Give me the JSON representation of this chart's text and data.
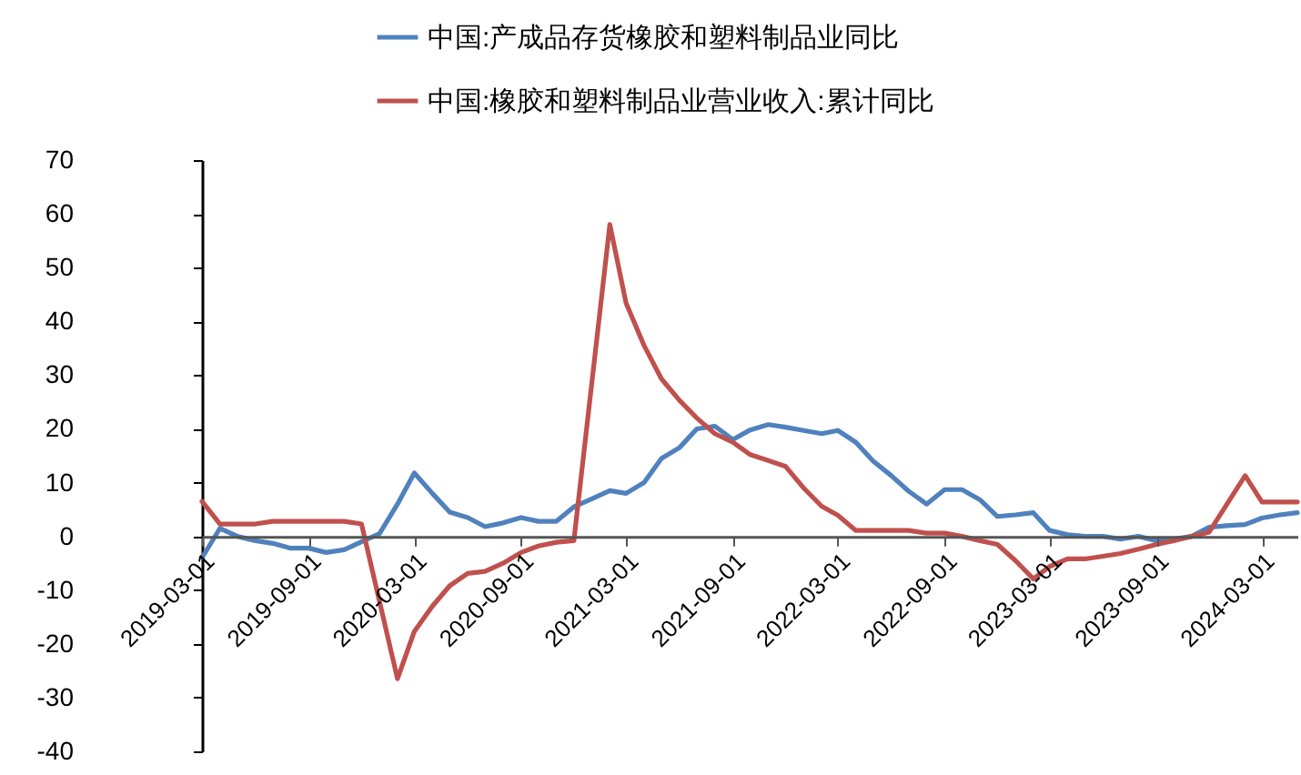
{
  "chart_data": {
    "type": "line",
    "x": [
      "2019-03",
      "2019-04",
      "2019-05",
      "2019-06",
      "2019-07",
      "2019-08",
      "2019-09",
      "2019-10",
      "2019-11",
      "2019-12",
      "2020-01",
      "2020-02",
      "2020-03",
      "2020-04",
      "2020-05",
      "2020-06",
      "2020-07",
      "2020-08",
      "2020-09",
      "2020-10",
      "2020-11",
      "2020-12",
      "2021-01",
      "2021-02",
      "2021-03",
      "2021-04",
      "2021-05",
      "2021-06",
      "2021-07",
      "2021-08",
      "2021-09",
      "2021-10",
      "2021-11",
      "2021-12",
      "2022-01",
      "2022-02",
      "2022-03",
      "2022-04",
      "2022-05",
      "2022-06",
      "2022-07",
      "2022-08",
      "2022-09",
      "2022-10",
      "2022-11",
      "2022-12",
      "2023-01",
      "2023-02",
      "2023-03",
      "2023-04",
      "2023-05",
      "2023-06",
      "2023-07",
      "2023-08",
      "2023-09",
      "2023-10",
      "2023-11",
      "2023-12",
      "2024-01",
      "2024-02",
      "2024-03",
      "2024-04",
      "2024-05"
    ],
    "series": [
      {
        "name": "中国:产成品存货橡胶和塑料制品业同比",
        "color": "#4f81bd",
        "values": [
          -4,
          1.5,
          0,
          -0.8,
          -1.3,
          -2.2,
          -2.2,
          -3,
          -2.5,
          -1,
          0.5,
          6,
          11.8,
          8,
          4.5,
          3.5,
          1.8,
          2.5,
          3.5,
          2.8,
          2.8,
          5.5,
          7,
          8.5,
          8,
          10,
          14.5,
          16.5,
          20,
          20.5,
          18,
          19.8,
          20.8,
          20.3,
          19.7,
          19.1,
          19.7,
          17.5,
          14,
          11.3,
          8.4,
          6,
          8.7,
          8.7,
          6.8,
          3.7,
          4,
          4.4,
          1.1,
          0.3,
          0,
          0,
          -0.5,
          0,
          -0.8,
          -0.5,
          0,
          1.7,
          2,
          2.2,
          3.4,
          4,
          4.4
        ]
      },
      {
        "name": "中国:橡胶和塑料制品业营业收入:累计同比",
        "color": "#c0504d",
        "x": [
          "2019-03",
          "2019-04",
          "2019-05",
          "2019-06",
          "2019-07",
          "2019-08",
          "2019-09",
          "2019-10",
          "2019-11",
          "2019-12",
          "2020-02",
          "2020-03",
          "2020-04",
          "2020-05",
          "2020-06",
          "2020-07",
          "2020-08",
          "2020-09",
          "2020-10",
          "2020-11",
          "2020-12",
          "2021-02",
          "2021-03",
          "2021-04",
          "2021-05",
          "2021-06",
          "2021-07",
          "2021-08",
          "2021-09",
          "2021-10",
          "2021-11",
          "2021-12",
          "2022-01",
          "2022-02",
          "2022-03",
          "2022-04",
          "2022-05",
          "2022-06",
          "2022-07",
          "2022-08",
          "2022-09",
          "2022-10",
          "2022-11",
          "2022-12",
          "2023-01",
          "2023-02",
          "2023-03",
          "2023-04",
          "2023-05",
          "2023-06",
          "2023-07",
          "2023-08",
          "2023-09",
          "2023-10",
          "2023-11",
          "2023-12",
          "2024-02",
          "2024-03",
          "2024-04",
          "2024-05"
        ],
        "values": [
          6.5,
          2.3,
          2.3,
          2.3,
          2.8,
          2.8,
          2.8,
          2.8,
          2.8,
          2.3,
          -26.5,
          -17.7,
          -13,
          -9.2,
          -6.9,
          -6.5,
          -5,
          -3,
          -1.8,
          -1.1,
          -0.8,
          58,
          43.4,
          35.5,
          29.3,
          25.3,
          22,
          19.1,
          17.5,
          15.2,
          14.1,
          13,
          9,
          5.6,
          3.9,
          1.1,
          1.1,
          1.1,
          1.1,
          0.6,
          0.6,
          0,
          -0.8,
          -1.5,
          -4.5,
          -7.9,
          -5.6,
          -4.2,
          -4.2,
          -3.7,
          -3.2,
          -2.4,
          -1.5,
          -0.8,
          0,
          0.8,
          11.3,
          6.4,
          6.4,
          6.4
        ]
      }
    ],
    "xlim": [
      "2019-03-01",
      "2024-05-01"
    ],
    "xticks": [
      "2019-03-01",
      "2019-09-01",
      "2020-03-01",
      "2020-09-01",
      "2021-03-01",
      "2021-09-01",
      "2022-03-01",
      "2022-09-01",
      "2023-03-01",
      "2023-09-01",
      "2024-03-01"
    ],
    "ylim": [
      -40,
      70
    ],
    "yticks": [
      -40,
      -30,
      -20,
      -10,
      0,
      10,
      20,
      30,
      40,
      50,
      60,
      70
    ],
    "grid": false,
    "legend": "top"
  }
}
